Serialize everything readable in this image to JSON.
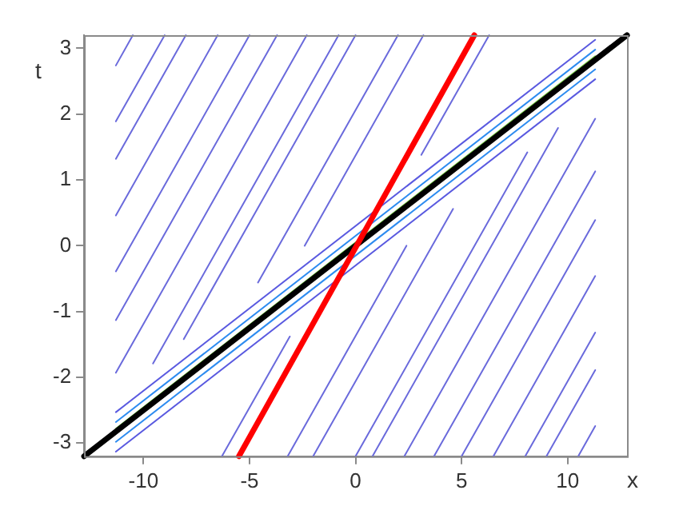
{
  "chart_data": {
    "type": "line",
    "xlabel": "x",
    "ylabel": "t",
    "xlim": [
      -12.8,
      12.8
    ],
    "ylim": [
      -3.2,
      3.2
    ],
    "xticks": [
      -10,
      -5,
      0,
      5,
      10
    ],
    "yticks": [
      -3,
      -2,
      -1,
      0,
      1,
      2,
      3
    ],
    "grid": false,
    "legend": false,
    "marker": "none",
    "line_style": "solid",
    "series": [
      {
        "color": "#6a6adc",
        "x": [
          -11.3,
          -10.5
        ],
        "values": [
          2.74,
          3.2
        ]
      },
      {
        "color": "#6a6adc",
        "x": [
          -11.3,
          -9.0
        ],
        "values": [
          1.89,
          3.2
        ]
      },
      {
        "color": "#6a6adc",
        "x": [
          -11.3,
          -8.0
        ],
        "values": [
          1.32,
          3.2
        ]
      },
      {
        "color": "#6a6adc",
        "x": [
          -11.3,
          -6.5
        ],
        "values": [
          0.46,
          3.2
        ]
      },
      {
        "color": "#6a6adc",
        "x": [
          -11.3,
          -5.0
        ],
        "values": [
          -0.39,
          3.2
        ]
      },
      {
        "color": "#6a6adc",
        "x": [
          -11.3,
          -3.7
        ],
        "values": [
          -1.13,
          3.2
        ]
      },
      {
        "color": "#6a6adc",
        "x": [
          -11.3,
          -2.3
        ],
        "values": [
          -1.93,
          3.2
        ]
      },
      {
        "color": "#6a6adc",
        "x": [
          -9.55,
          -0.8
        ],
        "values": [
          -1.79,
          3.2
        ]
      },
      {
        "color": "#6a6adc",
        "x": [
          -8.1,
          0
        ],
        "values": [
          -1.42,
          3.2
        ]
      },
      {
        "color": "#6a6adc",
        "x": [
          -4.6,
          2.0
        ],
        "values": [
          -0.56,
          3.2
        ]
      },
      {
        "color": "#6a6adc",
        "x": [
          -2.4,
          3.2
        ],
        "values": [
          0.0,
          3.2
        ]
      },
      {
        "color": "#6a6adc",
        "x": [
          3.1,
          6.3
        ],
        "values": [
          1.38,
          3.2
        ]
      },
      {
        "color": "#6a6adc",
        "x": [
          10.5,
          11.3
        ],
        "values": [
          -3.2,
          -2.74
        ]
      },
      {
        "color": "#6a6adc",
        "x": [
          9.0,
          11.3
        ],
        "values": [
          -3.2,
          -1.89
        ]
      },
      {
        "color": "#6a6adc",
        "x": [
          8.0,
          11.3
        ],
        "values": [
          -3.2,
          -1.32
        ]
      },
      {
        "color": "#6a6adc",
        "x": [
          6.5,
          11.3
        ],
        "values": [
          -3.2,
          -0.46
        ]
      },
      {
        "color": "#6a6adc",
        "x": [
          5.0,
          11.3
        ],
        "values": [
          -3.2,
          0.39
        ]
      },
      {
        "color": "#6a6adc",
        "x": [
          3.7,
          11.3
        ],
        "values": [
          -3.2,
          1.13
        ]
      },
      {
        "color": "#6a6adc",
        "x": [
          2.3,
          11.3
        ],
        "values": [
          -3.2,
          1.93
        ]
      },
      {
        "color": "#6a6adc",
        "x": [
          0.8,
          9.55
        ],
        "values": [
          -3.2,
          1.79
        ]
      },
      {
        "color": "#6a6adc",
        "x": [
          0,
          8.1
        ],
        "values": [
          -3.2,
          1.42
        ]
      },
      {
        "color": "#6a6adc",
        "x": [
          -2.0,
          4.6
        ],
        "values": [
          -3.2,
          0.56
        ]
      },
      {
        "color": "#6a6adc",
        "x": [
          -3.2,
          2.4
        ],
        "values": [
          -3.2,
          0.0
        ]
      },
      {
        "color": "#6a6adc",
        "x": [
          -6.3,
          -3.1
        ],
        "values": [
          -3.2,
          -1.38
        ]
      },
      {
        "color": "#5a5ae0",
        "x": [
          -11.3,
          11.3
        ],
        "values": [
          -2.53,
          3.13
        ]
      },
      {
        "color": "#5a5ae0",
        "x": [
          -11.3,
          11.3
        ],
        "values": [
          -3.13,
          2.53
        ]
      },
      {
        "color": "#2e8cf0",
        "x": [
          -11.3,
          11.3
        ],
        "values": [
          -2.68,
          2.98
        ]
      },
      {
        "color": "#2e8cf0",
        "x": [
          -11.3,
          11.3
        ],
        "values": [
          -2.98,
          2.68
        ]
      },
      {
        "color": "#7cd04a",
        "x": [
          -11.3,
          11.3
        ],
        "values": [
          -2.78,
          2.88
        ]
      },
      {
        "color": "#000000",
        "x": [
          -12.8,
          12.8
        ],
        "values": [
          -3.2,
          3.2
        ]
      },
      {
        "color": "#ff0000",
        "x": [
          -5.5,
          5.6
        ],
        "values": [
          -3.2,
          3.2
        ]
      }
    ]
  }
}
